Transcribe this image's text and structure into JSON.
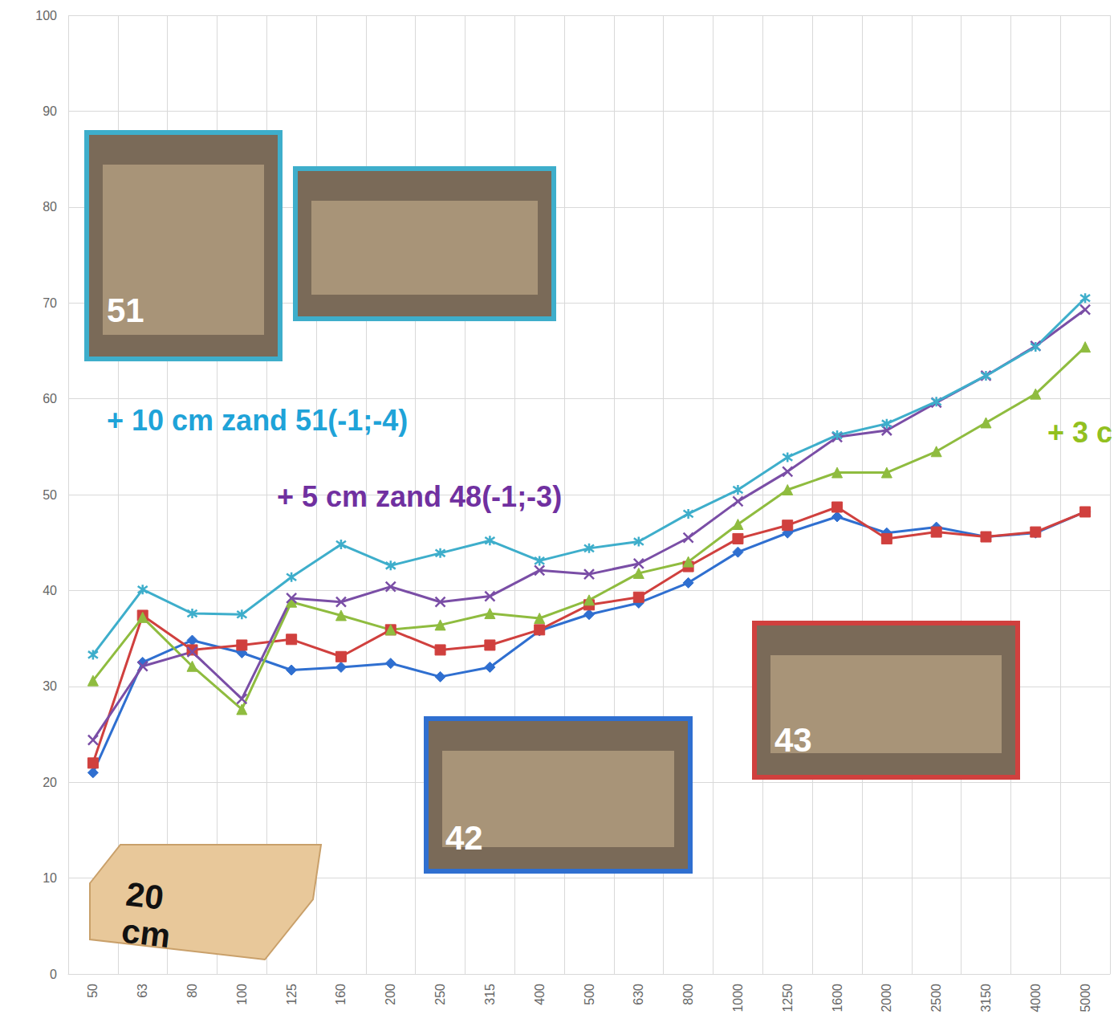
{
  "chart_data": {
    "type": "line",
    "categories": [
      "50",
      "63",
      "80",
      "100",
      "125",
      "160",
      "200",
      "250",
      "315",
      "400",
      "500",
      "630",
      "800",
      "1000",
      "1250",
      "1600",
      "2000",
      "2500",
      "3150",
      "4000",
      "5000"
    ],
    "series": [
      {
        "color": "#2f6fd0",
        "marker": "diamond",
        "values": [
          21,
          32.5,
          34.8,
          33.5,
          31.7,
          32,
          32.4,
          31,
          32,
          35.8,
          37.5,
          38.7,
          40.8,
          44,
          46,
          47.7,
          46,
          46.6,
          45.6,
          46,
          48.2
        ]
      },
      {
        "color": "#d0403e",
        "marker": "square",
        "values": [
          22,
          37.4,
          33.8,
          34.3,
          34.9,
          33.1,
          35.9,
          33.8,
          34.3,
          35.9,
          38.5,
          39.3,
          42.5,
          45.4,
          46.8,
          48.7,
          45.4,
          46.1,
          45.6,
          46.1,
          48.2
        ]
      },
      {
        "color": "#8fbc3f",
        "marker": "triangle",
        "values": [
          30.6,
          37.2,
          32.1,
          27.6,
          38.8,
          37.4,
          35.9,
          36.4,
          37.6,
          37.1,
          39,
          41.8,
          43,
          46.9,
          50.5,
          52.3,
          52.3,
          54.5,
          57.5,
          60.5,
          65.4
        ]
      },
      {
        "color": "#7a4ea6",
        "marker": "x",
        "values": [
          24.4,
          32.1,
          33.6,
          28.7,
          39.2,
          38.8,
          40.4,
          38.8,
          39.4,
          42.1,
          41.7,
          42.8,
          45.5,
          49.3,
          52.4,
          56,
          56.7,
          59.6,
          62.4,
          65.5,
          69.3
        ]
      },
      {
        "color": "#3eaecb",
        "marker": "star",
        "values": [
          33.3,
          40.1,
          37.6,
          37.5,
          41.4,
          44.8,
          42.6,
          43.9,
          45.2,
          43.1,
          44.4,
          45.1,
          48,
          50.5,
          53.9,
          56.2,
          57.4,
          59.7,
          62.4,
          65.4,
          70.5
        ]
      }
    ],
    "ylim": [
      0,
      100
    ],
    "yticks": [
      0,
      10,
      20,
      30,
      40,
      50,
      60,
      70,
      80,
      90,
      100
    ],
    "grid": true,
    "annotations": [
      {
        "text": "+ 10 cm zand 51(-1;-4)",
        "color": "#1fa3d8"
      },
      {
        "text": "+ 5 cm zand 48(-1;-3)",
        "color": "#7030a0"
      },
      {
        "text": "+ 3 c",
        "color": "#92c020"
      }
    ],
    "photo_labels": [
      {
        "text": "51",
        "color": "#3eaecb"
      },
      {
        "text": "42",
        "color": "#2f6fd0"
      },
      {
        "text": "43",
        "color": "#d0403e"
      }
    ],
    "slab_label": "20 cm"
  }
}
